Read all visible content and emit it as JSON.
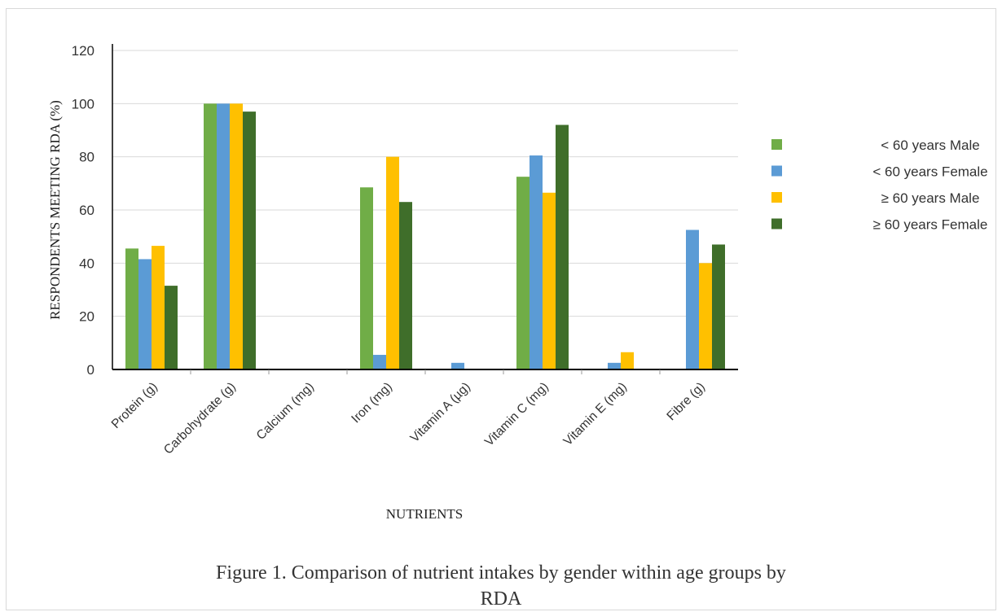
{
  "chart_data": {
    "type": "bar",
    "xlabel": "NUTRIENTS",
    "ylabel": "RESPONDENTS MEETING RDA (%)",
    "ylim": [
      0,
      120
    ],
    "yticks": [
      0,
      20,
      40,
      60,
      80,
      100,
      120
    ],
    "grid": true,
    "legend_position": "right",
    "categories": [
      "Protein (g)",
      "Carbohydrate (g)",
      "Calcium (mg)",
      "Iron (mg)",
      "Vitamin A (µg)",
      "Vitamin C (mg)",
      "Vitamin E (mg)",
      "Fibre (g)"
    ],
    "series": [
      {
        "name": "< 60 years Male",
        "color": "#70ad47",
        "values": [
          45.5,
          100,
          0,
          68.5,
          0,
          72.5,
          0,
          0
        ]
      },
      {
        "name": "< 60 years Female",
        "color": "#5b9bd5",
        "values": [
          41.5,
          100,
          0,
          5.5,
          2.5,
          80.5,
          2.5,
          52.5
        ]
      },
      {
        "name": "≥ 60 years Male",
        "color": "#ffc000",
        "values": [
          46.5,
          100,
          0,
          80,
          0,
          66.5,
          6.5,
          40
        ]
      },
      {
        "name": "≥ 60 years Female",
        "color": "#3f6e2a",
        "values": [
          31.5,
          97,
          0,
          63,
          0,
          92,
          0,
          47
        ]
      }
    ]
  },
  "caption": {
    "line1": "Figure 1. Comparison of nutrient intakes by gender within age groups by",
    "line2": "RDA"
  }
}
